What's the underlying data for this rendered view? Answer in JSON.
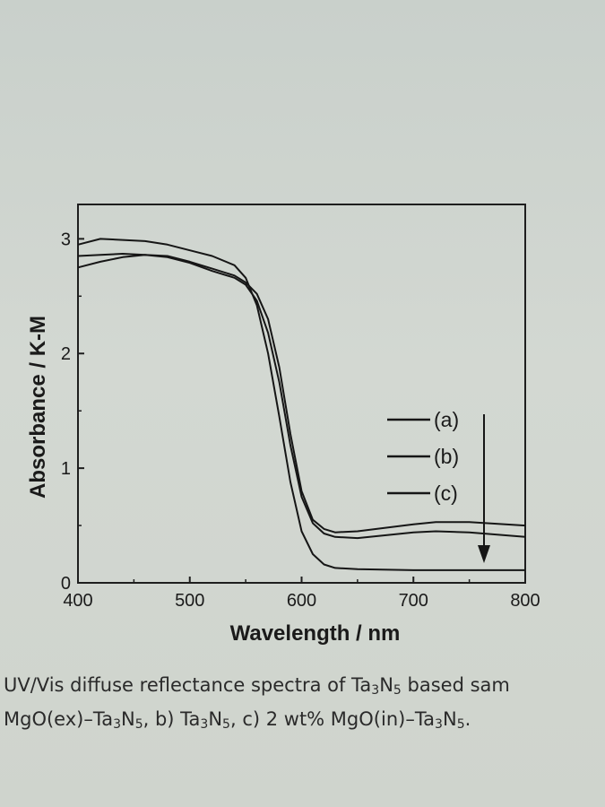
{
  "chart_data": {
    "type": "line",
    "title": "",
    "xlabel": "Wavelength / nm",
    "ylabel": "Absorbance / K-M",
    "xlim": [
      400,
      800
    ],
    "ylim": [
      0,
      3.3
    ],
    "xticks": [
      400,
      500,
      600,
      700,
      800
    ],
    "yticks": [
      0,
      1,
      2,
      3
    ],
    "grid": false,
    "legend": {
      "placement": "right",
      "entries": [
        "(a)",
        "(b)",
        "(c)"
      ]
    },
    "annotations": [
      "downward arrow indicating decreasing absorbance from (a) to (c)"
    ],
    "series": [
      {
        "name": "(a)",
        "x": [
          400,
          420,
          440,
          460,
          480,
          500,
          520,
          540,
          550,
          560,
          570,
          580,
          590,
          600,
          610,
          620,
          630,
          650,
          700,
          720,
          750,
          800
        ],
        "y": [
          2.75,
          2.8,
          2.84,
          2.86,
          2.85,
          2.8,
          2.74,
          2.68,
          2.62,
          2.52,
          2.3,
          1.88,
          1.3,
          0.8,
          0.55,
          0.47,
          0.44,
          0.45,
          0.51,
          0.53,
          0.53,
          0.5
        ]
      },
      {
        "name": "(b)",
        "x": [
          400,
          420,
          440,
          460,
          480,
          500,
          520,
          540,
          550,
          560,
          570,
          580,
          590,
          600,
          610,
          620,
          630,
          650,
          700,
          720,
          750,
          800
        ],
        "y": [
          2.85,
          2.86,
          2.87,
          2.86,
          2.84,
          2.79,
          2.72,
          2.66,
          2.6,
          2.46,
          2.18,
          1.75,
          1.2,
          0.75,
          0.52,
          0.43,
          0.4,
          0.39,
          0.44,
          0.45,
          0.44,
          0.4
        ]
      },
      {
        "name": "(c)",
        "x": [
          400,
          420,
          440,
          460,
          480,
          500,
          520,
          540,
          550,
          560,
          570,
          580,
          590,
          600,
          610,
          620,
          630,
          650,
          700,
          750,
          800
        ],
        "y": [
          2.95,
          3.0,
          2.99,
          2.98,
          2.95,
          2.9,
          2.85,
          2.77,
          2.66,
          2.42,
          2.0,
          1.45,
          0.88,
          0.45,
          0.25,
          0.16,
          0.13,
          0.12,
          0.11,
          0.11,
          0.11
        ]
      }
    ]
  },
  "caption": {
    "line1_parts": [
      "UV/Vis diffuse reflectance spectra of Ta",
      "3",
      "N",
      "5",
      " based sam"
    ],
    "line2_parts": [
      "MgO(ex)–Ta",
      "3",
      "N",
      "5",
      ", b) Ta",
      "3",
      "N",
      "5",
      ", c) 2 wt% MgO(in)–Ta",
      "3",
      "N",
      "5",
      "."
    ]
  }
}
